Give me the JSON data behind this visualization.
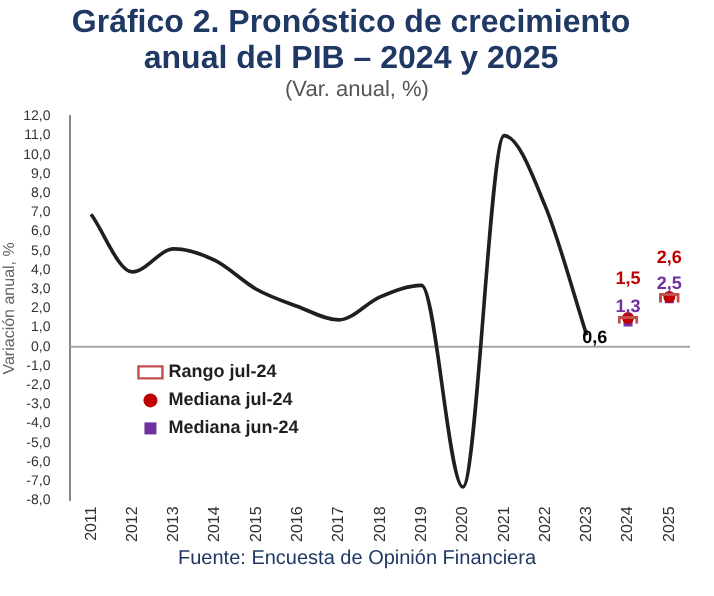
{
  "chart_data": {
    "type": "line",
    "title": "Gráfico 2. Pronóstico de crecimiento anual del PIB – 2024 y 2025",
    "subtitle": "(Var. anual, %)",
    "ylabel": "Variación anual, %",
    "annotations": [
      "Fuente: Encuesta de Opinión Financiera"
    ],
    "categories": [
      "2011",
      "2012",
      "2013",
      "2014",
      "2015",
      "2016",
      "2017",
      "2018",
      "2019",
      "2020",
      "2021",
      "2022",
      "2023",
      "2024",
      "2025"
    ],
    "ylim": [
      -8,
      12
    ],
    "yticks": [
      {
        "value": -8,
        "label": "-8,0"
      },
      {
        "value": -7,
        "label": "-7,0"
      },
      {
        "value": -6,
        "label": "-6,0"
      },
      {
        "value": -5,
        "label": "-5,0"
      },
      {
        "value": -4,
        "label": "-4,0"
      },
      {
        "value": -3,
        "label": "-3,0"
      },
      {
        "value": -2,
        "label": "-2,0"
      },
      {
        "value": -1,
        "label": "-1,0"
      },
      {
        "value": 0,
        "label": "0,0"
      },
      {
        "value": 1,
        "label": "1,0"
      },
      {
        "value": 2,
        "label": "2,0"
      },
      {
        "value": 3,
        "label": "3,0"
      },
      {
        "value": 4,
        "label": "4,0"
      },
      {
        "value": 5,
        "label": "5,0"
      },
      {
        "value": 6,
        "label": "6,0"
      },
      {
        "value": 7,
        "label": "7,0"
      },
      {
        "value": 8,
        "label": "8,0"
      },
      {
        "value": 9,
        "label": "9,0"
      },
      {
        "value": 10,
        "label": "10,0"
      },
      {
        "value": 11,
        "label": "11,0"
      },
      {
        "value": 12,
        "label": "12,0"
      }
    ],
    "grid": false,
    "legend": "bottom left",
    "ref_lines": [
      {
        "axis": "y",
        "value": 0,
        "color": "#a6a6a6"
      }
    ],
    "series": [
      {
        "color": "#1f1f1f",
        "values": [
          6.9,
          3.9,
          5.1,
          4.5,
          3.0,
          2.1,
          1.4,
          2.6,
          3.2,
          -7.3,
          11.0,
          7.3,
          0.6,
          null,
          null
        ],
        "value_labels": [
          null,
          null,
          null,
          null,
          null,
          null,
          null,
          null,
          null,
          null,
          null,
          null,
          "0,6",
          null,
          null
        ]
      },
      {
        "type": "bar",
        "name": "Rango jul-24",
        "color": "#c0504d",
        "base": [
          null,
          null,
          null,
          null,
          null,
          null,
          null,
          null,
          null,
          null,
          null,
          null,
          null,
          1.2,
          2.3
        ],
        "values": [
          null,
          null,
          null,
          null,
          null,
          null,
          null,
          null,
          null,
          null,
          null,
          null,
          null,
          0.4,
          0.5
        ]
      },
      {
        "type": "scatter",
        "name": "Mediana jul-24",
        "color": "#c00000",
        "marker": "circle",
        "values": [
          null,
          null,
          null,
          null,
          null,
          null,
          null,
          null,
          null,
          null,
          null,
          null,
          null,
          1.5,
          2.6
        ],
        "value_labels": [
          null,
          null,
          null,
          null,
          null,
          null,
          null,
          null,
          null,
          null,
          null,
          null,
          null,
          "1,5",
          "2,6"
        ]
      },
      {
        "type": "scatter",
        "name": "Mediana jun-24",
        "color": "#7030a0",
        "marker": "square",
        "values": [
          null,
          null,
          null,
          null,
          null,
          null,
          null,
          null,
          null,
          null,
          null,
          null,
          null,
          1.3,
          2.5
        ],
        "value_labels": [
          null,
          null,
          null,
          null,
          null,
          null,
          null,
          null,
          null,
          null,
          null,
          null,
          null,
          "1,3",
          "2,5"
        ]
      }
    ]
  }
}
